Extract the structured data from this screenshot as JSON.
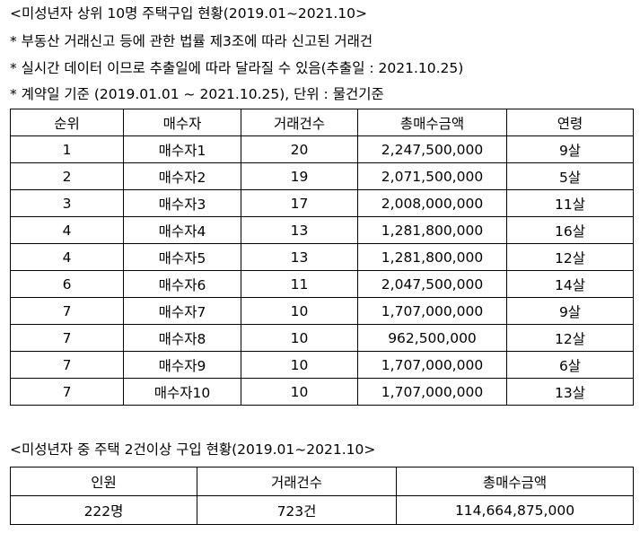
{
  "title1": "<미성년자 상위 10명 주택구입 현황(2019.01~2021.10>",
  "notes": [
    "* 부동산 거래신고 등에 관한 법률 제3조에 따라 신고된 거래건",
    "* 실시간 데이터 이므로 추출일에 따라 달라질 수 있음(추출일 : 2021.10.25)",
    "* 계약일 기준 (2019.01.01 ~ 2021.10.25), 단위 : 물건기준"
  ],
  "main_table": {
    "headers": [
      "순위",
      "매수자",
      "거래건수",
      "총매수금액",
      "연령"
    ],
    "rows": [
      [
        "1",
        "매수자1",
        "20",
        "2,247,500,000",
        "9살"
      ],
      [
        "2",
        "매수자2",
        "19",
        "2,071,500,000",
        "5살"
      ],
      [
        "3",
        "매수자3",
        "17",
        "2,008,000,000",
        "11살"
      ],
      [
        "4",
        "매수자4",
        "13",
        "1,281,800,000",
        "16살"
      ],
      [
        "4",
        "매수자5",
        "13",
        "1,281,800,000",
        "12살"
      ],
      [
        "6",
        "매수자6",
        "11",
        "2,047,500,000",
        "14살"
      ],
      [
        "7",
        "매수자7",
        "10",
        "1,707,000,000",
        "9살"
      ],
      [
        "7",
        "매수자8",
        "10",
        "962,500,000",
        "12살"
      ],
      [
        "7",
        "매수자9",
        "10",
        "1,707,000,000",
        "6살"
      ],
      [
        "7",
        "매수자10",
        "10",
        "1,707,000,000",
        "13살"
      ]
    ]
  },
  "title2": "<미성년자 중 주택 2건이상 구입 현황(2019.01~2021.10>",
  "summary_table": {
    "headers": [
      "인원",
      "거래건수",
      "총매수금액"
    ],
    "rows": [
      [
        "222명",
        "723건",
        "114,664,875,000"
      ]
    ]
  }
}
